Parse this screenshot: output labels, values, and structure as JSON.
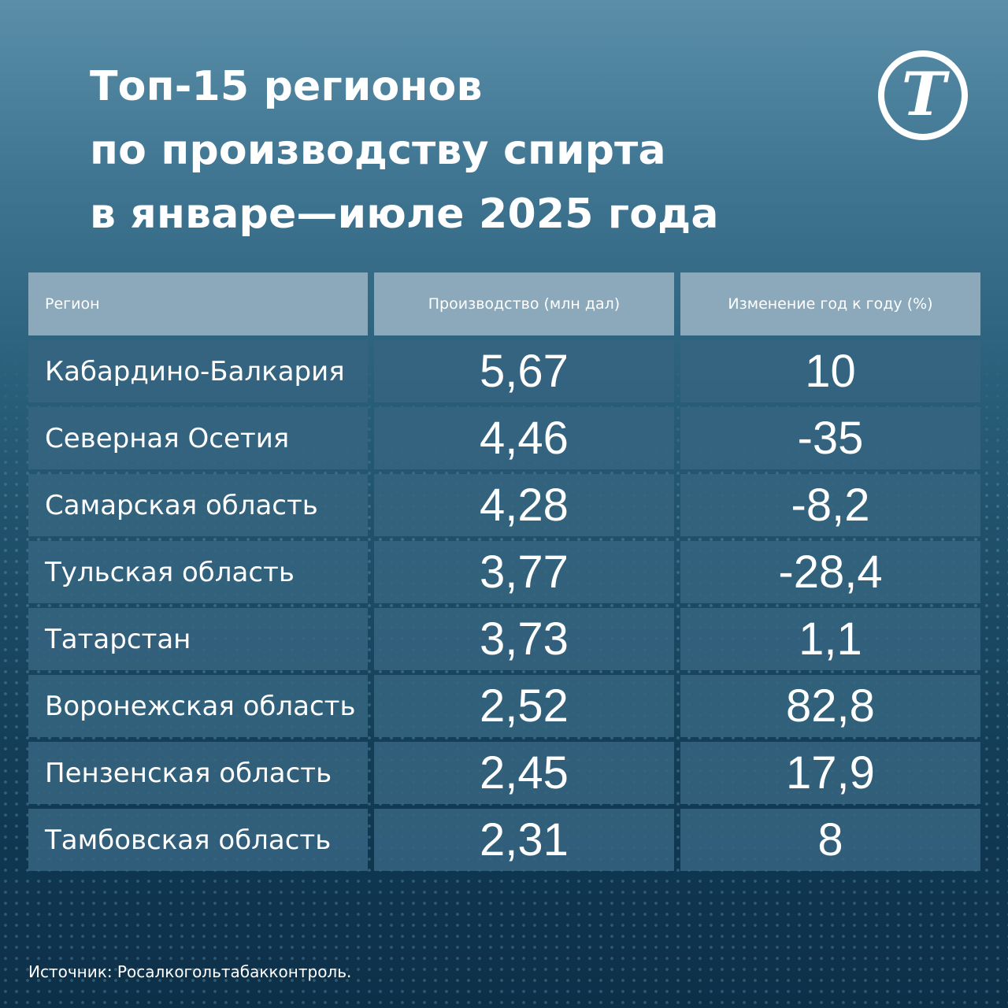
{
  "title_lines": [
    "Топ-15 регионов",
    "по производству спирта",
    "в январе—июле 2025 года"
  ],
  "logo_glyph": "Т",
  "headers": {
    "region": "Регион",
    "production": "Производство (млн дал)",
    "change": "Изменение год к году (%)"
  },
  "rows": [
    {
      "region": "Кабардино-Балкария",
      "production": "5,67",
      "change": "10"
    },
    {
      "region": "Северная Осетия",
      "production": "4,46",
      "change": "-35"
    },
    {
      "region": "Самарская область",
      "production": "4,28",
      "change": "-8,2"
    },
    {
      "region": "Тульская область",
      "production": "3,77",
      "change": "-28,4"
    },
    {
      "region": "Татарстан",
      "production": "3,73",
      "change": "1,1"
    },
    {
      "region": "Воронежская область",
      "production": "2,52",
      "change": "82,8"
    },
    {
      "region": "Пензенская область",
      "production": "2,45",
      "change": "17,9"
    },
    {
      "region": "Тамбовская область",
      "production": "2,31",
      "change": "8"
    }
  ],
  "source": "Источник: Росалкогольтабакконтроль.",
  "colors": {
    "header_bg": "#8ba9ba",
    "row_bg": "#366480",
    "text": "#ffffff"
  },
  "chart_data": {
    "type": "table",
    "title": "Топ-15 регионов по производству спирта в январе—июле 2025 года",
    "columns": [
      "Регион",
      "Производство (млн дал)",
      "Изменение год к году (%)"
    ],
    "categories": [
      "Кабардино-Балкария",
      "Северная Осетия",
      "Самарская область",
      "Тульская область",
      "Татарстан",
      "Воронежская область",
      "Пензенская область",
      "Тамбовская область"
    ],
    "series": [
      {
        "name": "Производство (млн дал)",
        "values": [
          5.67,
          4.46,
          4.28,
          3.77,
          3.73,
          2.52,
          2.45,
          2.31
        ]
      },
      {
        "name": "Изменение год к году (%)",
        "values": [
          10,
          -35,
          -8.2,
          -28.4,
          1.1,
          82.8,
          17.9,
          8
        ]
      }
    ]
  }
}
